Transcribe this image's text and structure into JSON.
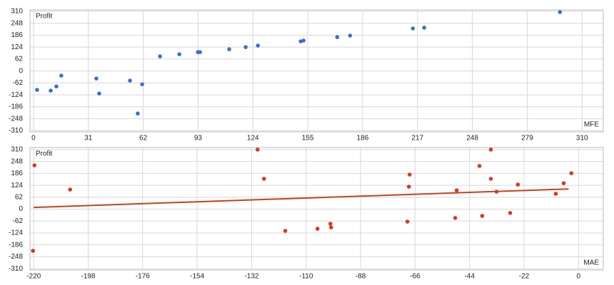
{
  "chart_data": [
    {
      "type": "scatter",
      "ylabel": "Profit",
      "xlabel": "MFE",
      "color": "#3a6fd8",
      "grid": true,
      "xlim": [
        -2,
        322
      ],
      "ylim": [
        -316,
        317
      ],
      "xticks": [
        0,
        31,
        62,
        93,
        124,
        155,
        186,
        217,
        248,
        279,
        310
      ],
      "yticks": [
        310,
        248,
        186,
        124,
        62,
        0,
        -62,
        -124,
        -186,
        -248,
        -310
      ],
      "x": [
        2,
        9.7,
        12.9,
        15.7,
        35.5,
        37.1,
        54.5,
        58.9,
        61.4,
        71.5,
        82.4,
        92.9,
        94.1,
        110.6,
        119.9,
        126.8,
        151,
        152.6,
        171.6,
        178.9,
        214.4,
        220.8,
        297.5
      ],
      "y": [
        -98,
        -102,
        -80,
        -24,
        -39,
        -117,
        -50,
        -221,
        -69,
        76,
        87,
        98,
        98,
        113,
        124,
        132,
        154,
        158,
        176,
        184,
        221,
        225,
        306
      ]
    },
    {
      "type": "scatter",
      "ylabel": "Profit",
      "xlabel": "MAE",
      "color": "#d9381e",
      "grid": true,
      "xlim": [
        -221.5,
        10
      ],
      "ylim": [
        -317,
        321
      ],
      "xticks": [
        -220,
        -198,
        -176,
        -154,
        -132,
        -110,
        -88,
        -66,
        -44,
        -22,
        0
      ],
      "yticks": [
        310,
        248,
        186,
        124,
        62,
        0,
        -62,
        -124,
        -186,
        -248,
        -310
      ],
      "x": [
        -219.7,
        -205.3,
        -129.6,
        -127,
        -118.4,
        -105.4,
        -100.2,
        -99.9,
        -220.3,
        -69.1,
        -68.5,
        -68.2,
        -49.8,
        -49.2,
        -40,
        -38.9,
        -35.4,
        -35.4,
        -33.1,
        -27.6,
        -24.5,
        -9.2,
        -6,
        -2.9
      ],
      "y": [
        228,
        102,
        310,
        158,
        -113,
        -102,
        -76,
        -95,
        -217,
        -65,
        117,
        180,
        -46,
        98,
        225,
        -35,
        310,
        158,
        91,
        -20,
        128,
        80,
        135,
        187
      ],
      "trendline": {
        "x": [
          -220,
          -4
        ],
        "y": [
          9,
          105
        ],
        "color": "#c8401a"
      }
    }
  ]
}
